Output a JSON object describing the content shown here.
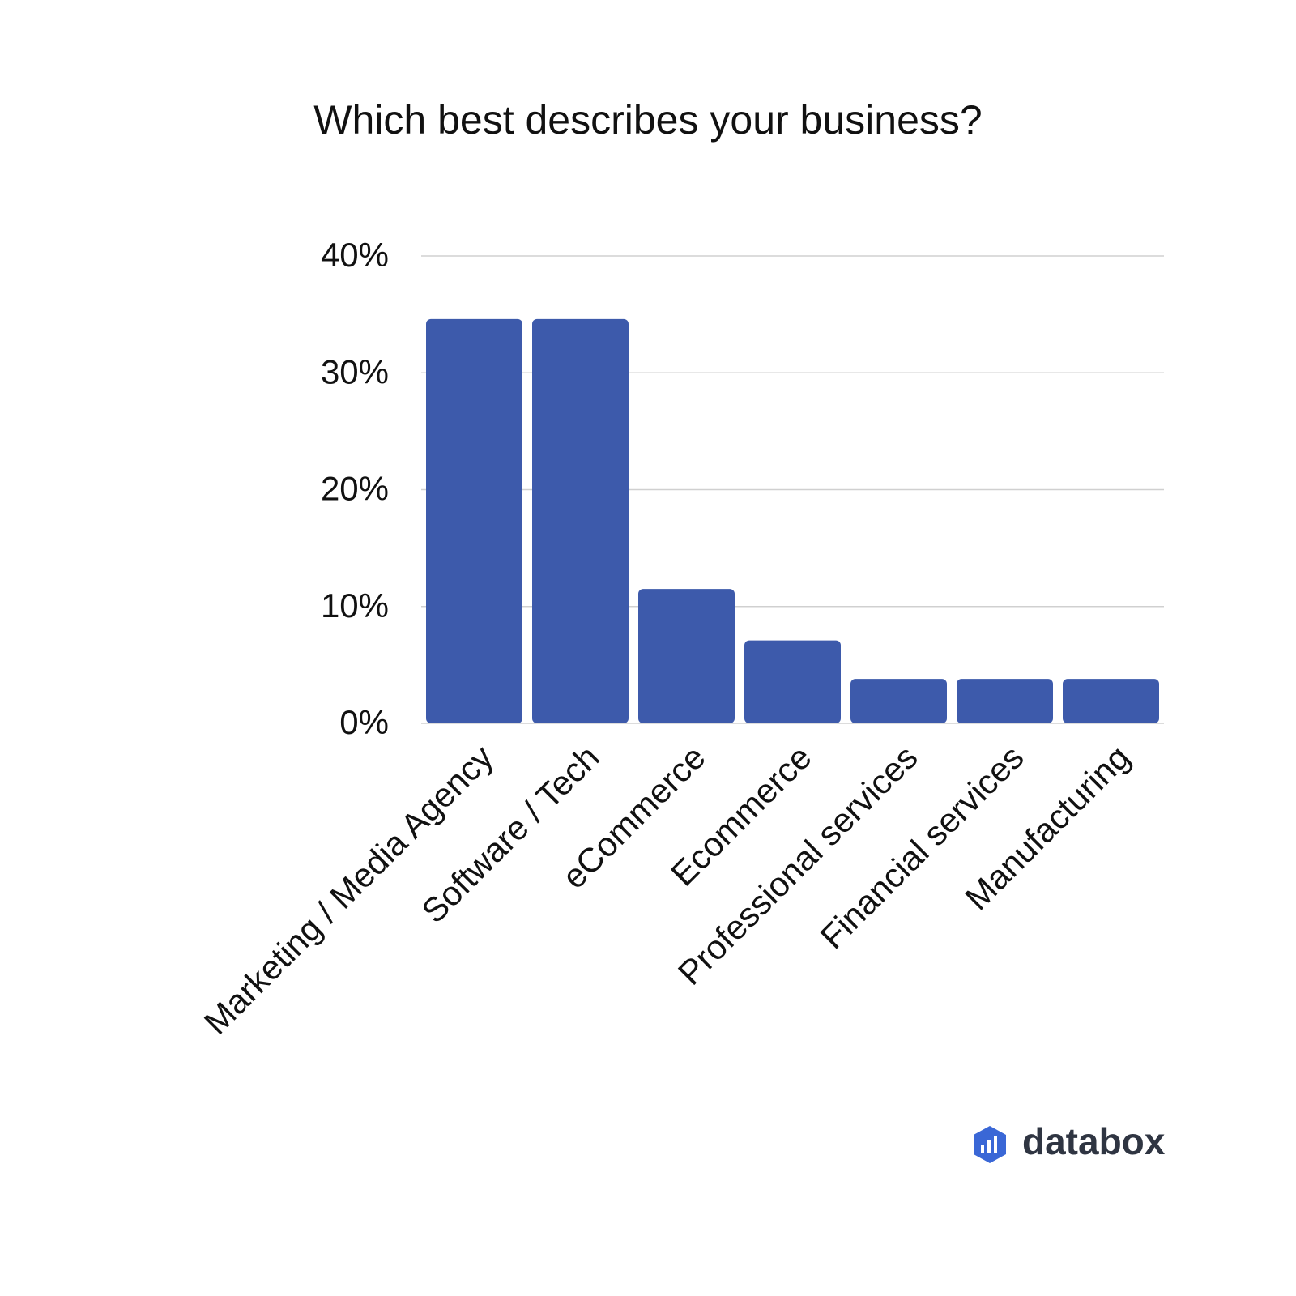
{
  "chart_data": {
    "type": "bar",
    "title": "Which best describes your business?",
    "categories": [
      "Marketing / Media Agency",
      "Software / Tech",
      "eCommerce",
      "Ecommerce",
      "Professional services",
      "Financial services",
      "Manufacturing"
    ],
    "values": [
      34.6,
      34.6,
      11.5,
      7.1,
      3.8,
      3.8,
      3.8
    ],
    "color": "#3d5aab",
    "ylim": [
      0,
      40
    ],
    "yticks": [
      {
        "value": 0,
        "label": "0%"
      },
      {
        "value": 10,
        "label": "10%"
      },
      {
        "value": 20,
        "label": "20%"
      },
      {
        "value": 30,
        "label": "30%"
      },
      {
        "value": 40,
        "label": "40%"
      }
    ],
    "grid": true
  },
  "logo": {
    "text": "databox"
  }
}
